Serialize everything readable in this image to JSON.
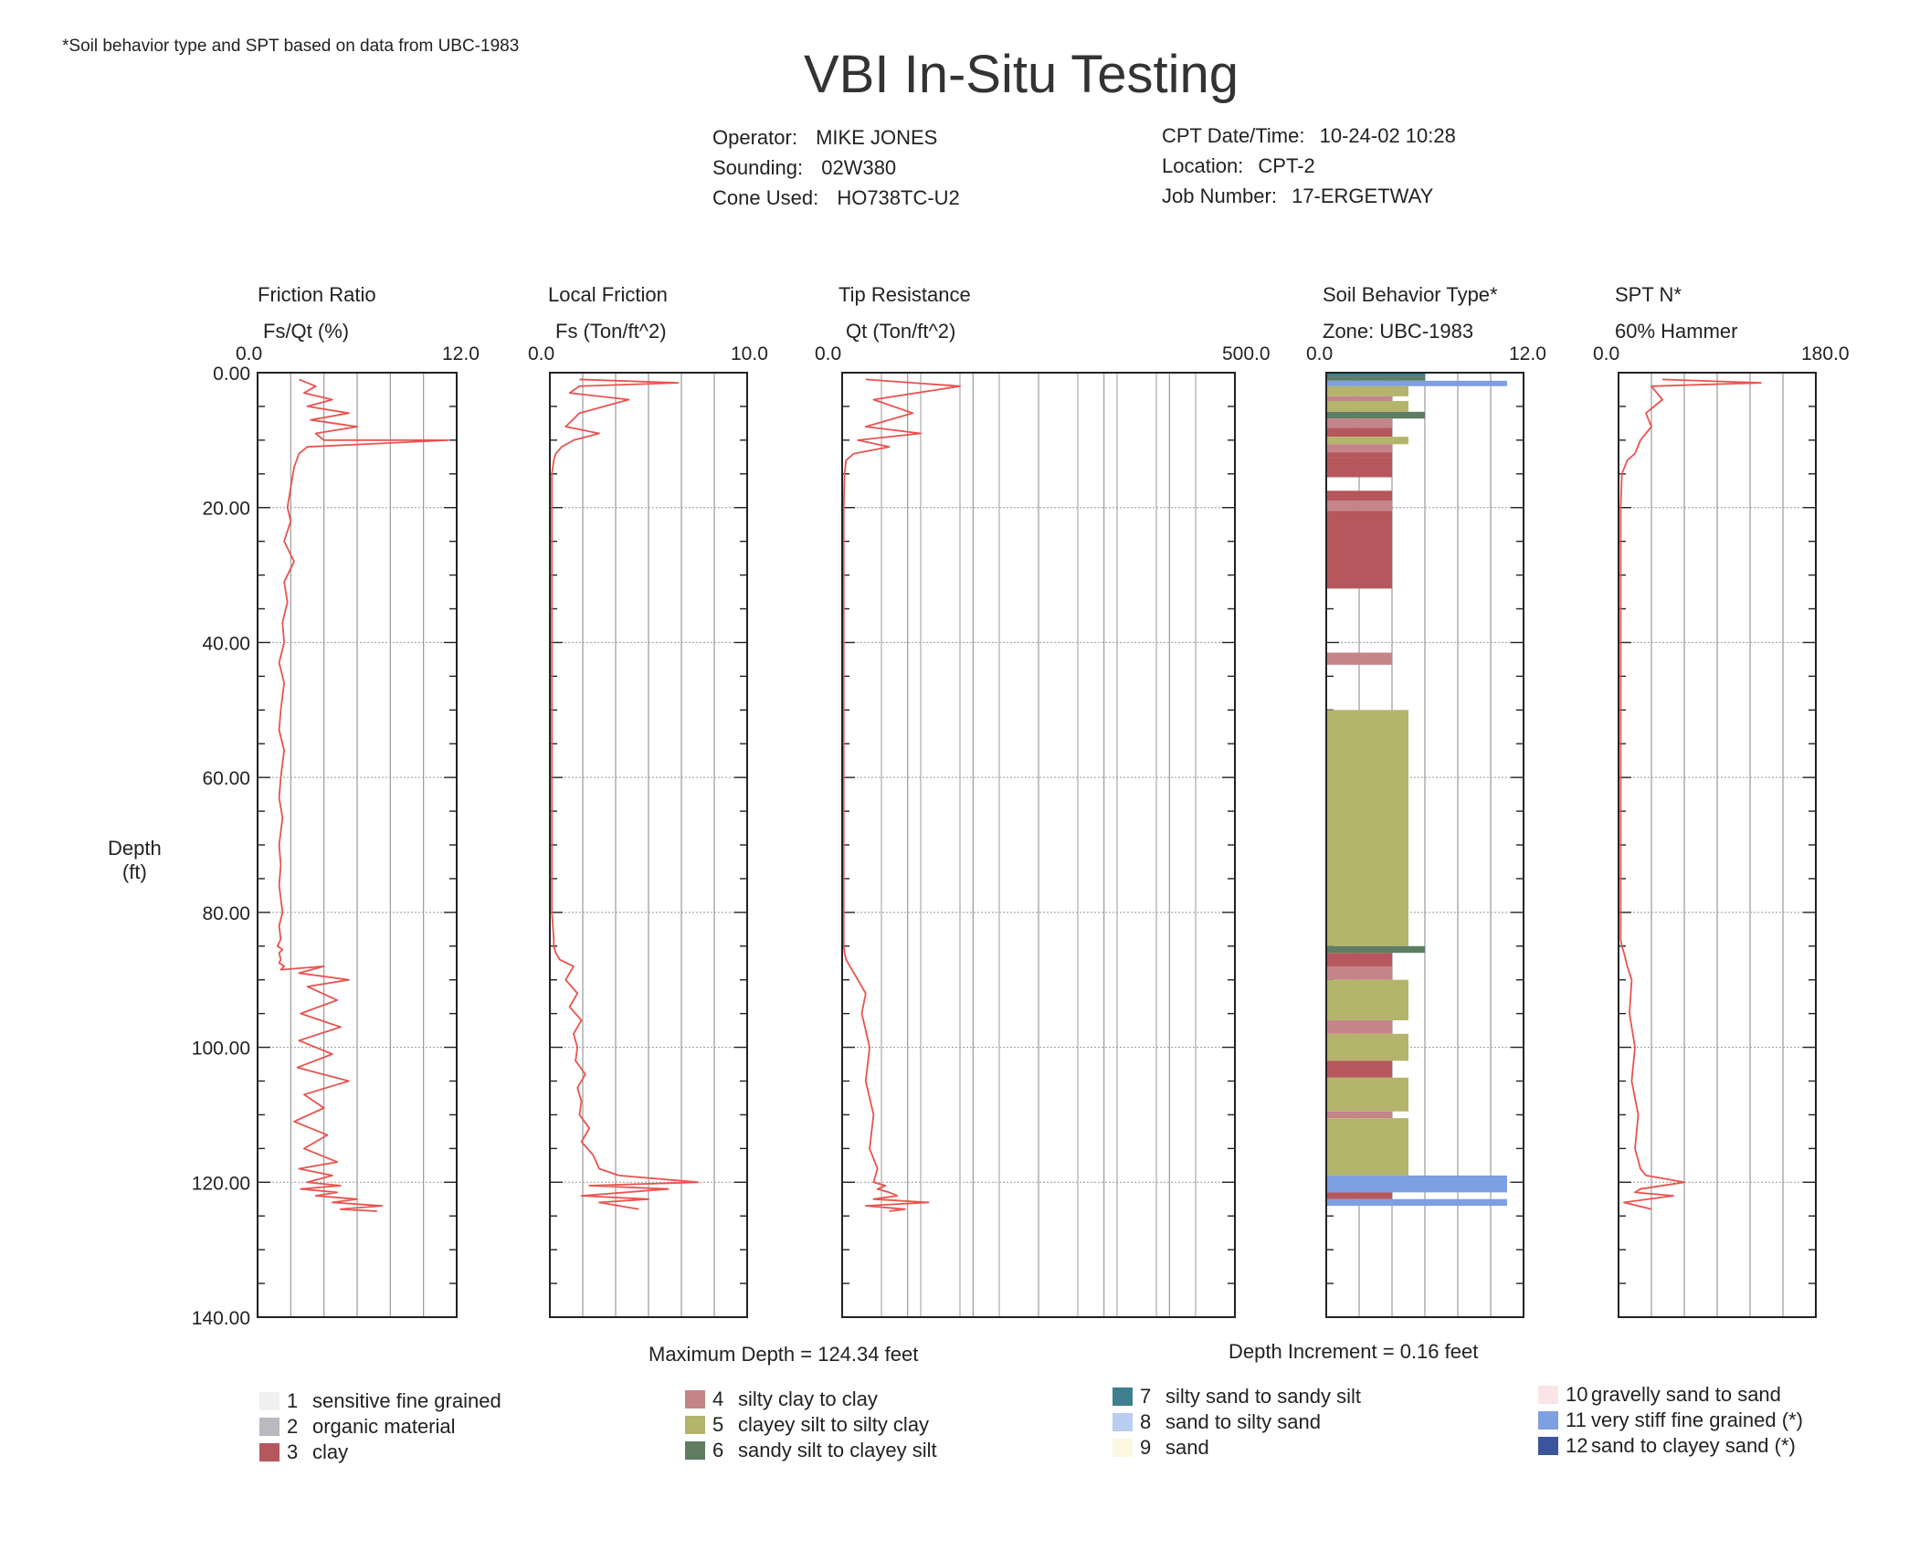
{
  "footnote": "*Soil behavior type and SPT based on data from UBC-1983",
  "title": "VBI In-Situ Testing",
  "header": {
    "operator_label": "Operator:",
    "operator": "MIKE JONES",
    "sounding_label": "Sounding:",
    "sounding": "02W380",
    "cone_label": "Cone Used:",
    "cone": "HO738TC-U2",
    "datetime_label": "CPT Date/Time:",
    "datetime": "10-24-02 10:28",
    "location_label": "Location:",
    "location": "CPT-2",
    "job_label": "Job Number:",
    "job": "17-ERGETWAY"
  },
  "depth_axis": {
    "label_line1": "Depth",
    "label_line2": "(ft)"
  },
  "max_depth": "Maximum Depth = 124.34 feet",
  "depth_increment": "Depth Increment = 0.16 feet",
  "colors": {
    "trace": "#e8534f",
    "grid": "#999999",
    "frame": "#222222"
  },
  "legend": [
    {
      "num": "1",
      "label": "sensitive fine grained",
      "color": "#f0f0f0"
    },
    {
      "num": "2",
      "label": "organic material",
      "color": "#b9b9bf"
    },
    {
      "num": "3",
      "label": "clay",
      "color": "#b5575c"
    },
    {
      "num": "4",
      "label": "silty clay to clay",
      "color": "#c4848a"
    },
    {
      "num": "5",
      "label": "clayey silt to silty clay",
      "color": "#b4b46c"
    },
    {
      "num": "6",
      "label": "sandy silt to clayey silt",
      "color": "#5e7d63"
    },
    {
      "num": "7",
      "label": "silty sand to sandy silt",
      "color": "#3e7f90"
    },
    {
      "num": "8",
      "label": "sand to silty sand",
      "color": "#b9cdf0"
    },
    {
      "num": "9",
      "label": "sand",
      "color": "#fdf7e2"
    },
    {
      "num": "10",
      "label": "gravelly sand to sand",
      "color": "#fbe4e6"
    },
    {
      "num": "11",
      "label": "very stiff fine grained (*)",
      "color": "#7e9fe0"
    },
    {
      "num": "12",
      "label": "sand to clayey sand (*)",
      "color": "#3c549b"
    }
  ],
  "chart_data": [
    {
      "type": "line",
      "title": "Friction Ratio",
      "subtitle": "Fs/Qt (%)",
      "xlim": [
        0,
        12
      ],
      "xtick_labels": [
        "0.0",
        "12.0"
      ],
      "ylim": [
        140,
        0
      ],
      "ylabel": "Depth (ft)",
      "ytick_labels": [
        "0.00",
        "20.00",
        "40.00",
        "60.00",
        "80.00",
        "100.00",
        "120.00",
        "140.00"
      ],
      "x": [
        2.5,
        3.5,
        2.8,
        4.5,
        3.0,
        5.5,
        3.2,
        6.0,
        3.5,
        4.0,
        11.5,
        3.0,
        2.5,
        2.2,
        2.0,
        1.8,
        2.0,
        1.6,
        2.2,
        1.6,
        1.8,
        1.5,
        1.6,
        1.3,
        1.6,
        1.4,
        1.3,
        1.6,
        1.4,
        1.3,
        1.5,
        1.3,
        1.4,
        1.3,
        1.5,
        1.3,
        1.4,
        1.2,
        1.5,
        1.3,
        1.4,
        1.3,
        1.6,
        1.4,
        4.0,
        2.5,
        5.5,
        3.0,
        4.8,
        2.6,
        5.0,
        2.5,
        4.5,
        2.4,
        5.5,
        2.8,
        4.0,
        2.2,
        4.2,
        2.8,
        4.8,
        2.5,
        4.5,
        3.0,
        5.0,
        2.6,
        4.8,
        3.5,
        6.0,
        4.5,
        7.5,
        5.0,
        7.2
      ],
      "y": [
        1,
        2,
        3,
        4,
        5,
        6,
        7,
        8,
        9,
        10,
        10,
        11,
        12,
        14,
        17,
        20,
        22,
        25,
        28,
        31,
        34,
        37,
        40,
        43,
        46,
        50,
        53,
        56,
        60,
        63,
        66,
        70,
        73,
        76,
        80,
        82,
        84,
        85,
        85.5,
        86,
        87,
        87.5,
        88,
        88.5,
        88,
        89,
        90,
        91,
        93,
        95,
        97,
        99,
        101,
        103,
        105,
        107,
        109,
        111,
        113,
        115,
        117,
        118,
        119,
        120,
        120.5,
        121,
        121.5,
        122,
        122.5,
        123,
        123.5,
        124,
        124.3
      ]
    },
    {
      "type": "line",
      "title": "Local Friction",
      "subtitle": "Fs (Ton/ft^2)",
      "xlim": [
        0,
        10
      ],
      "xtick_labels": [
        "0.0",
        "10.0"
      ],
      "ylim": [
        140,
        0
      ],
      "x": [
        1.5,
        6.5,
        1.5,
        1.0,
        4.0,
        1.5,
        0.8,
        2.5,
        1.2,
        0.6,
        0.3,
        0.2,
        0.1,
        0.1,
        0.1,
        0.1,
        0.1,
        0.1,
        0.1,
        0.1,
        0.2,
        0.2,
        0.3,
        0.5,
        1.2,
        0.8,
        1.4,
        1.0,
        1.6,
        1.2,
        1.4,
        1.3,
        1.8,
        1.4,
        1.6,
        1.5,
        2.0,
        1.6,
        2.2,
        2.5,
        3.5,
        7.5,
        2.0,
        6.0,
        1.6,
        5.0,
        2.5,
        4.5
      ],
      "y": [
        1,
        1.5,
        2,
        3,
        4,
        6,
        8,
        9,
        10,
        11,
        12,
        13,
        15,
        20,
        30,
        40,
        50,
        60,
        70,
        80,
        84,
        85,
        86,
        87,
        88,
        90,
        92,
        94,
        96,
        98,
        100,
        102,
        104,
        106,
        108,
        110,
        112,
        114,
        116,
        118,
        119,
        120,
        120.5,
        121,
        122,
        122.5,
        123,
        124
      ]
    },
    {
      "type": "line",
      "title": "Tip Resistance",
      "subtitle": "Qt (Ton/ft^2)",
      "xlim": [
        0,
        500
      ],
      "xtick_labels": [
        "0.0",
        "500.0"
      ],
      "ylim": [
        140,
        0
      ],
      "x": [
        30,
        150,
        40,
        90,
        30,
        100,
        20,
        60,
        15,
        5,
        3,
        2,
        2,
        2,
        2,
        2,
        2,
        2,
        2,
        2,
        3,
        5,
        10,
        20,
        30,
        25,
        35,
        30,
        40,
        35,
        45,
        40,
        55,
        45,
        60,
        70,
        40,
        110,
        30,
        80,
        60
      ],
      "y": [
        1,
        2,
        4,
        6,
        8,
        9,
        10,
        11,
        12,
        13,
        15,
        20,
        30,
        40,
        50,
        60,
        70,
        80,
        84,
        85,
        86,
        87,
        88,
        90,
        92,
        95,
        100,
        105,
        110,
        115,
        118,
        120,
        120.5,
        121,
        121.5,
        122,
        122.5,
        123,
        123.5,
        124,
        124.3
      ]
    },
    {
      "type": "bar",
      "title": "Soil Behavior Type*",
      "subtitle": "Zone: UBC-1983",
      "xlim": [
        0,
        12
      ],
      "xtick_labels": [
        "0.0",
        "12.0"
      ],
      "ylim": [
        140,
        0
      ],
      "bars": [
        {
          "from": 0,
          "to": 0.6,
          "zone": 7
        },
        {
          "from": 0.6,
          "to": 1.2,
          "zone": 6
        },
        {
          "from": 1.2,
          "to": 2.0,
          "zone": 11
        },
        {
          "from": 2.0,
          "to": 3.5,
          "zone": 5
        },
        {
          "from": 3.5,
          "to": 4.2,
          "zone": 4
        },
        {
          "from": 4.2,
          "to": 5.8,
          "zone": 5
        },
        {
          "from": 5.8,
          "to": 6.8,
          "zone": 6
        },
        {
          "from": 6.8,
          "to": 8.2,
          "zone": 4
        },
        {
          "from": 8.2,
          "to": 9.5,
          "zone": 3
        },
        {
          "from": 9.5,
          "to": 10.6,
          "zone": 5
        },
        {
          "from": 10.6,
          "to": 11.8,
          "zone": 4
        },
        {
          "from": 11.8,
          "to": 12.6,
          "zone": 3
        },
        {
          "from": 12.6,
          "to": 15.5,
          "zone": 3
        },
        {
          "from": 17.5,
          "to": 19.0,
          "zone": 3
        },
        {
          "from": 19.0,
          "to": 20.5,
          "zone": 4
        },
        {
          "from": 20.5,
          "to": 32.0,
          "zone": 3
        },
        {
          "from": 41.5,
          "to": 43.3,
          "zone": 4
        },
        {
          "from": 50.0,
          "to": 85.0,
          "zone": 5
        },
        {
          "from": 85.0,
          "to": 86.0,
          "zone": 6
        },
        {
          "from": 86.0,
          "to": 88.0,
          "zone": 3
        },
        {
          "from": 88.0,
          "to": 90.0,
          "zone": 4
        },
        {
          "from": 90.0,
          "to": 96.0,
          "zone": 5
        },
        {
          "from": 96.0,
          "to": 98.0,
          "zone": 4
        },
        {
          "from": 98.0,
          "to": 102.0,
          "zone": 5
        },
        {
          "from": 102.0,
          "to": 104.5,
          "zone": 3
        },
        {
          "from": 104.5,
          "to": 109.5,
          "zone": 5
        },
        {
          "from": 109.5,
          "to": 110.5,
          "zone": 4
        },
        {
          "from": 110.5,
          "to": 119.0,
          "zone": 5
        },
        {
          "from": 119.0,
          "to": 121.5,
          "zone": 11
        },
        {
          "from": 121.5,
          "to": 122.5,
          "zone": 3
        },
        {
          "from": 122.5,
          "to": 123.5,
          "zone": 11
        }
      ]
    },
    {
      "type": "line",
      "title": "SPT N*",
      "subtitle": "60% Hammer",
      "xlim": [
        0,
        180
      ],
      "xtick_labels": [
        "0.0",
        "180.0"
      ],
      "ylim": [
        140,
        0
      ],
      "x": [
        40,
        130,
        30,
        40,
        25,
        30,
        20,
        15,
        8,
        3,
        2,
        2,
        2,
        2,
        2,
        2,
        2,
        2,
        3,
        5,
        8,
        12,
        10,
        15,
        12,
        18,
        15,
        20,
        25,
        60,
        20,
        15,
        50,
        5,
        30
      ],
      "y": [
        1,
        1.5,
        2,
        4,
        6,
        8,
        10,
        12,
        13,
        15,
        20,
        30,
        40,
        50,
        60,
        70,
        80,
        84,
        85,
        86,
        88,
        90,
        95,
        100,
        105,
        110,
        115,
        118,
        119,
        120,
        121,
        121.5,
        122,
        123,
        124
      ]
    }
  ]
}
